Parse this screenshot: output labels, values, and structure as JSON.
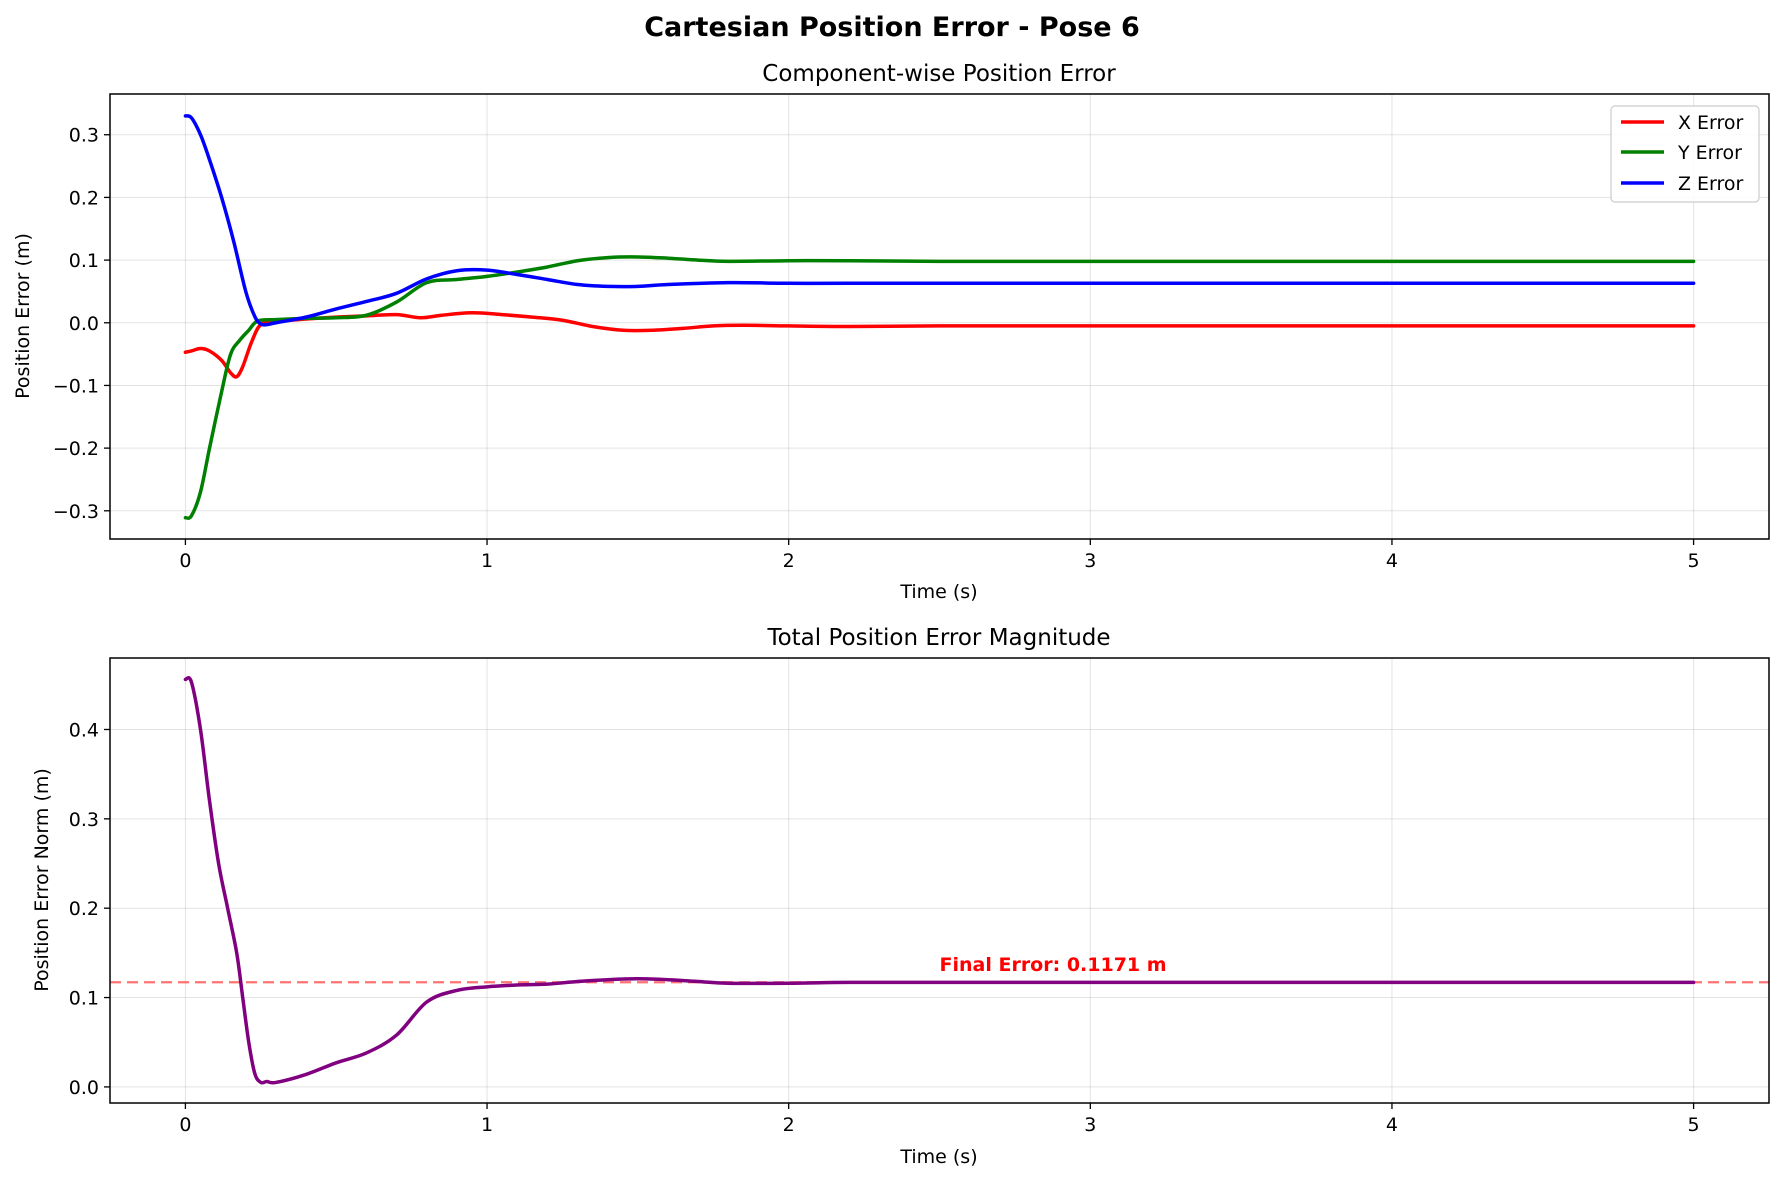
{
  "figure": {
    "title": "Cartesian Position Error - Pose 6"
  },
  "chart_data": [
    {
      "type": "line",
      "title": "Component-wise Position Error",
      "xlabel": "Time (s)",
      "ylabel": "Position Error (m)",
      "xlim": [
        -0.25,
        5.25
      ],
      "ylim": [
        -0.345,
        0.365
      ],
      "xticks": [
        0,
        1,
        2,
        3,
        4,
        5
      ],
      "yticks": [
        -0.3,
        -0.2,
        -0.1,
        0.0,
        0.1,
        0.2,
        0.3
      ],
      "xtick_labels": [
        "0",
        "1",
        "2",
        "3",
        "4",
        "5"
      ],
      "ytick_labels": [
        "−0.3",
        "−0.2",
        "−0.1",
        "0.0",
        "0.1",
        "0.2",
        "0.3"
      ],
      "grid": true,
      "legend": "top-right",
      "series": [
        {
          "name": "X Error",
          "color": "#ff0000",
          "x": [
            0,
            0.02,
            0.05,
            0.08,
            0.12,
            0.15,
            0.17,
            0.19,
            0.22,
            0.25,
            0.3,
            0.4,
            0.5,
            0.6,
            0.7,
            0.78,
            0.85,
            0.95,
            1.05,
            1.15,
            1.25,
            1.35,
            1.45,
            1.55,
            1.65,
            1.75,
            1.85,
            2.0,
            2.2,
            2.5,
            3.0,
            3.5,
            4.0,
            4.5,
            5.0
          ],
          "y": [
            -0.047,
            -0.045,
            -0.041,
            -0.045,
            -0.06,
            -0.08,
            -0.086,
            -0.07,
            -0.03,
            -0.003,
            0.002,
            0.006,
            0.009,
            0.011,
            0.013,
            0.008,
            0.012,
            0.016,
            0.013,
            0.009,
            0.004,
            -0.006,
            -0.012,
            -0.012,
            -0.009,
            -0.005,
            -0.004,
            -0.005,
            -0.006,
            -0.005,
            -0.005,
            -0.005,
            -0.005,
            -0.005,
            -0.005
          ]
        },
        {
          "name": "Y Error",
          "color": "#008000",
          "x": [
            0,
            0.02,
            0.05,
            0.08,
            0.12,
            0.15,
            0.18,
            0.21,
            0.24,
            0.3,
            0.4,
            0.5,
            0.6,
            0.7,
            0.8,
            0.9,
            1.0,
            1.1,
            1.2,
            1.3,
            1.4,
            1.5,
            1.6,
            1.7,
            1.8,
            2.0,
            2.2,
            2.5,
            3.0,
            3.5,
            4.0,
            4.5,
            5.0
          ],
          "y": [
            -0.311,
            -0.308,
            -0.27,
            -0.2,
            -0.11,
            -0.05,
            -0.028,
            -0.012,
            0.003,
            0.005,
            0.007,
            0.008,
            0.012,
            0.033,
            0.064,
            0.069,
            0.074,
            0.081,
            0.089,
            0.099,
            0.104,
            0.105,
            0.103,
            0.1,
            0.098,
            0.099,
            0.099,
            0.098,
            0.098,
            0.098,
            0.098,
            0.098,
            0.098
          ]
        },
        {
          "name": "Z Error",
          "color": "#0000ff",
          "x": [
            0,
            0.02,
            0.05,
            0.08,
            0.12,
            0.16,
            0.2,
            0.23,
            0.25,
            0.27,
            0.3,
            0.4,
            0.5,
            0.6,
            0.7,
            0.8,
            0.9,
            1.0,
            1.1,
            1.2,
            1.3,
            1.4,
            1.5,
            1.6,
            1.8,
            2.0,
            2.2,
            2.5,
            3.0,
            3.5,
            4.0,
            4.5,
            5.0
          ],
          "y": [
            0.33,
            0.327,
            0.3,
            0.26,
            0.2,
            0.13,
            0.05,
            0.01,
            -0.002,
            -0.003,
            0.0,
            0.009,
            0.022,
            0.034,
            0.047,
            0.07,
            0.083,
            0.084,
            0.077,
            0.069,
            0.061,
            0.058,
            0.058,
            0.061,
            0.064,
            0.063,
            0.063,
            0.063,
            0.063,
            0.063,
            0.063,
            0.063,
            0.063
          ]
        }
      ]
    },
    {
      "type": "line",
      "title": "Total Position Error Magnitude",
      "xlabel": "Time (s)",
      "ylabel": "Position Error Norm (m)",
      "xlim": [
        -0.25,
        5.25
      ],
      "ylim": [
        -0.018,
        0.48
      ],
      "xticks": [
        0,
        1,
        2,
        3,
        4,
        5
      ],
      "yticks": [
        0.0,
        0.1,
        0.2,
        0.3,
        0.4
      ],
      "xtick_labels": [
        "0",
        "1",
        "2",
        "3",
        "4",
        "5"
      ],
      "ytick_labels": [
        "0.0",
        "0.1",
        "0.2",
        "0.3",
        "0.4"
      ],
      "grid": true,
      "series": [
        {
          "color": "#800080",
          "x": [
            0,
            0.02,
            0.05,
            0.08,
            0.11,
            0.14,
            0.17,
            0.19,
            0.21,
            0.23,
            0.25,
            0.27,
            0.3,
            0.4,
            0.5,
            0.6,
            0.7,
            0.8,
            0.9,
            1.0,
            1.1,
            1.2,
            1.3,
            1.4,
            1.5,
            1.6,
            1.7,
            1.8,
            2.0,
            2.2,
            2.5,
            3.0,
            3.5,
            4.0,
            4.5,
            5.0
          ],
          "y": [
            0.456,
            0.453,
            0.4,
            0.32,
            0.25,
            0.2,
            0.15,
            0.1,
            0.05,
            0.015,
            0.005,
            0.006,
            0.005,
            0.014,
            0.027,
            0.038,
            0.058,
            0.095,
            0.108,
            0.112,
            0.114,
            0.115,
            0.118,
            0.12,
            0.121,
            0.12,
            0.118,
            0.116,
            0.116,
            0.117,
            0.117,
            0.117,
            0.117,
            0.117,
            0.117,
            0.117
          ]
        }
      ],
      "reference_line": {
        "y": 0.1171,
        "color": "#ff0000",
        "style": "dashed"
      },
      "annotation": {
        "text": "Final Error: 0.1171 m",
        "x": 2.5,
        "y": 0.13,
        "color": "#ff0000"
      }
    }
  ]
}
